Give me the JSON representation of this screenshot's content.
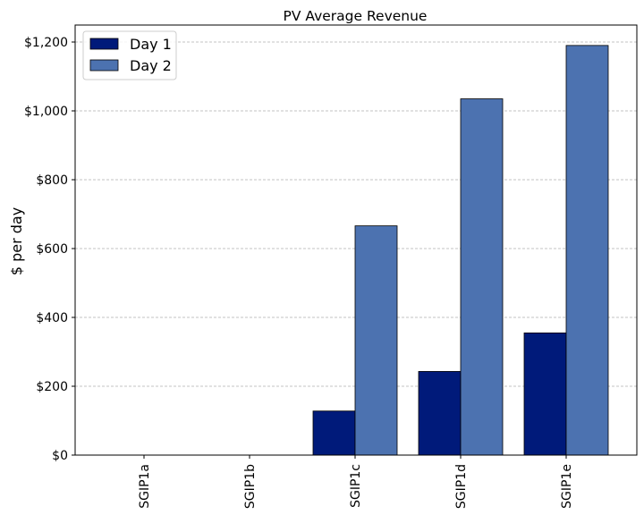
{
  "chart_data": {
    "type": "bar",
    "title": "PV Average Revenue",
    "xlabel": "",
    "ylabel": "$ per day",
    "categories": [
      "SGIP1a",
      "SGIP1b",
      "SGIP1c",
      "SGIP1d",
      "SGIP1e"
    ],
    "series": [
      {
        "name": "Day 1",
        "color": "#001a7a",
        "values": [
          0,
          0,
          128,
          243,
          355
        ]
      },
      {
        "name": "Day 2",
        "color": "#4c72b0",
        "values": [
          0,
          0,
          666,
          1035,
          1190
        ]
      }
    ],
    "ylim": [
      0,
      1200
    ],
    "yticks": [
      0,
      200,
      400,
      600,
      800,
      1000,
      1200
    ],
    "ytick_labels": [
      "$0",
      "$200",
      "$400",
      "$600",
      "$800",
      "$1,000",
      "$1,200"
    ],
    "grid": "y-dashed",
    "legend_position": "top-left"
  }
}
